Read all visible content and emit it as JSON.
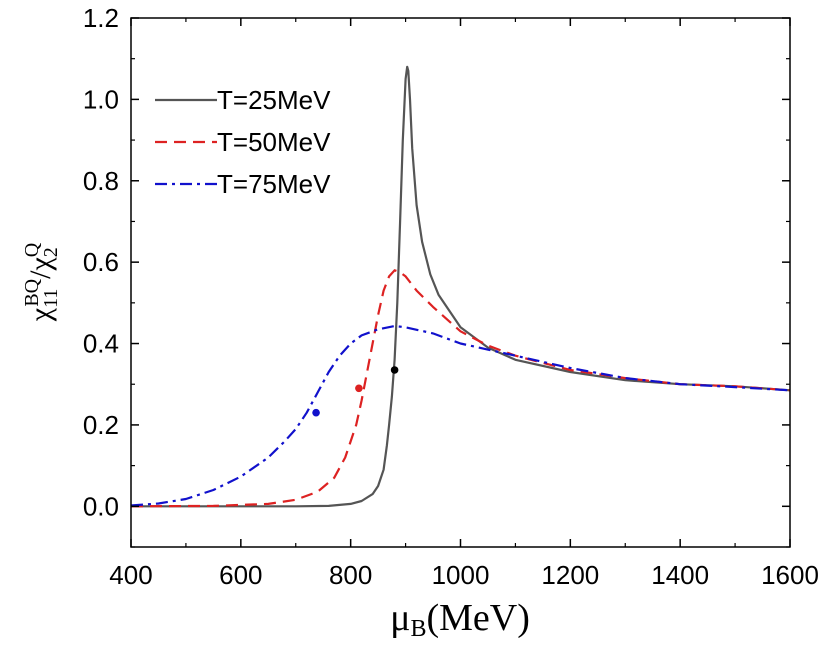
{
  "chart_data": {
    "type": "line",
    "title": "",
    "xlabel": "μB(MeV)",
    "ylabel": "χ11BQ/χ2Q",
    "xlabel_main": "μ",
    "xlabel_sub": "B",
    "xlabel_unit": "(MeV)",
    "ylabel_main": "χ",
    "ylabel_sub": "11",
    "ylabel_sup": "BQ",
    "ylabel_sep": "/χ",
    "ylabel_sub2": "2",
    "ylabel_sup2": "Q",
    "xlim": [
      400,
      1600
    ],
    "ylim": [
      -0.1,
      1.2
    ],
    "xticks": [
      400,
      600,
      800,
      1000,
      1200,
      1400,
      1600
    ],
    "xtick_labels": [
      "400",
      "600",
      "800",
      "1000",
      "1200",
      "1400",
      "1600"
    ],
    "yticks": [
      0.0,
      0.2,
      0.4,
      0.6,
      0.8,
      1.0,
      1.2
    ],
    "ytick_labels": [
      "0.0",
      "0.2",
      "0.4",
      "0.6",
      "0.8",
      "1.0",
      "1.2"
    ],
    "grid": false,
    "legend_position": "top-left",
    "series": [
      {
        "name": "T=25MeV",
        "color": "#555555",
        "style": "solid",
        "x": [
          400,
          600,
          700,
          760,
          800,
          820,
          840,
          850,
          860,
          866,
          870,
          875,
          880,
          885,
          890,
          895,
          900,
          903,
          905,
          908,
          912,
          920,
          930,
          945,
          960,
          1000,
          1050,
          1100,
          1200,
          1300,
          1400,
          1500,
          1600
        ],
        "y": [
          0.0,
          0.0,
          0.0,
          0.001,
          0.006,
          0.013,
          0.03,
          0.05,
          0.09,
          0.15,
          0.2,
          0.27,
          0.36,
          0.5,
          0.7,
          0.9,
          1.05,
          1.08,
          1.07,
          1.0,
          0.88,
          0.74,
          0.65,
          0.57,
          0.52,
          0.44,
          0.39,
          0.36,
          0.33,
          0.31,
          0.3,
          0.295,
          0.285
        ]
      },
      {
        "name": "T=50MeV",
        "color": "#dd2222",
        "style": "dashed",
        "x": [
          400,
          550,
          650,
          700,
          740,
          770,
          790,
          810,
          820,
          830,
          840,
          850,
          860,
          870,
          880,
          890,
          900,
          920,
          950,
          1000,
          1050,
          1100,
          1200,
          1300,
          1400,
          1500,
          1600
        ],
        "y": [
          0.0,
          0.001,
          0.006,
          0.016,
          0.036,
          0.07,
          0.12,
          0.2,
          0.26,
          0.33,
          0.4,
          0.47,
          0.53,
          0.565,
          0.58,
          0.575,
          0.565,
          0.53,
          0.49,
          0.43,
          0.395,
          0.37,
          0.335,
          0.315,
          0.3,
          0.295,
          0.285
        ]
      },
      {
        "name": "T=75MeV",
        "color": "#1111cc",
        "style": "dashdot",
        "x": [
          400,
          450,
          500,
          550,
          600,
          650,
          680,
          700,
          720,
          740,
          760,
          780,
          800,
          820,
          850,
          880,
          900,
          950,
          1000,
          1100,
          1200,
          1300,
          1400,
          1500,
          1600
        ],
        "y": [
          0.002,
          0.007,
          0.018,
          0.04,
          0.073,
          0.12,
          0.16,
          0.19,
          0.23,
          0.28,
          0.33,
          0.37,
          0.4,
          0.42,
          0.435,
          0.443,
          0.44,
          0.425,
          0.4,
          0.37,
          0.34,
          0.315,
          0.3,
          0.293,
          0.285
        ]
      }
    ],
    "markers": [
      {
        "series": "T=25MeV",
        "x": 880,
        "y": 0.335,
        "color": "#000000"
      },
      {
        "series": "T=50MeV",
        "x": 815,
        "y": 0.29,
        "color": "#dd2222"
      },
      {
        "series": "T=75MeV",
        "x": 737,
        "y": 0.23,
        "color": "#1111cc"
      }
    ]
  }
}
